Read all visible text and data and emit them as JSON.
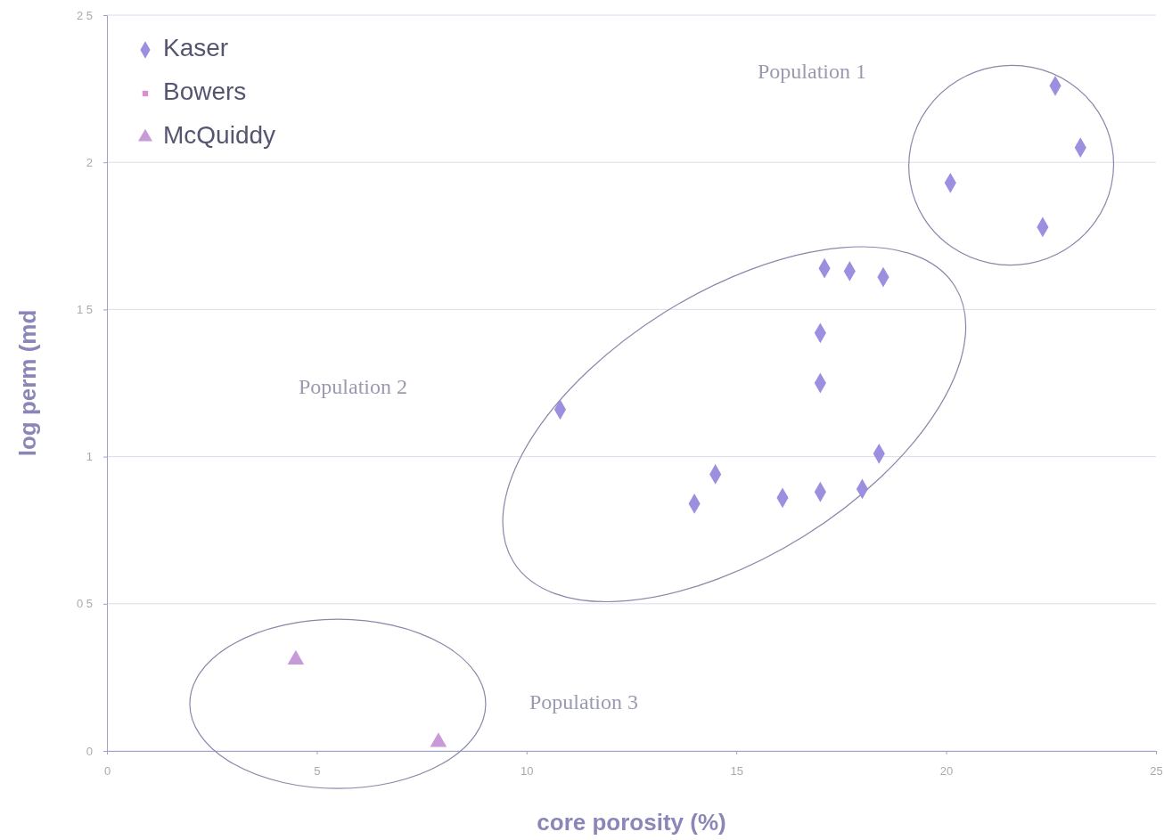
{
  "chart_data": {
    "type": "scatter",
    "xlabel": "core porosity (%)",
    "ylabel": "log perm (md",
    "xlim": [
      0,
      25
    ],
    "ylim": [
      0,
      2.5
    ],
    "xticks": [
      0,
      5,
      10,
      15,
      20,
      25
    ],
    "yticks": [
      0,
      {
        "value": 0.5,
        "label": "0 5"
      },
      1,
      {
        "value": 1.5,
        "label": "1 5"
      },
      2,
      {
        "value": 2.5,
        "label": "2 5"
      }
    ],
    "grid": "y",
    "legend": "top left",
    "series": [
      {
        "name": "Kaser",
        "color": "#9d8fe0",
        "marker": "diamond",
        "x": [
          10.8,
          14.0,
          14.5,
          16.1,
          17.0,
          18.0,
          18.4,
          17.0,
          17.0,
          17.1,
          17.7,
          18.5,
          20.1,
          22.3,
          22.6,
          23.2
        ],
        "values": [
          1.16,
          0.84,
          0.94,
          0.86,
          0.88,
          0.89,
          1.01,
          1.25,
          1.42,
          1.64,
          1.63,
          1.61,
          1.93,
          1.78,
          2.26,
          2.05
        ]
      },
      {
        "name": "Bowers",
        "color": "#d890d0",
        "marker": "square"
      },
      {
        "name": "McQuiddy",
        "color": "#c99ad8",
        "marker": "triangle",
        "x": [
          4.5,
          7.9
        ],
        "values": [
          0.31,
          0.03
        ]
      }
    ],
    "annotations": [
      "Population 1",
      "Population 2",
      "Population 3"
    ]
  }
}
